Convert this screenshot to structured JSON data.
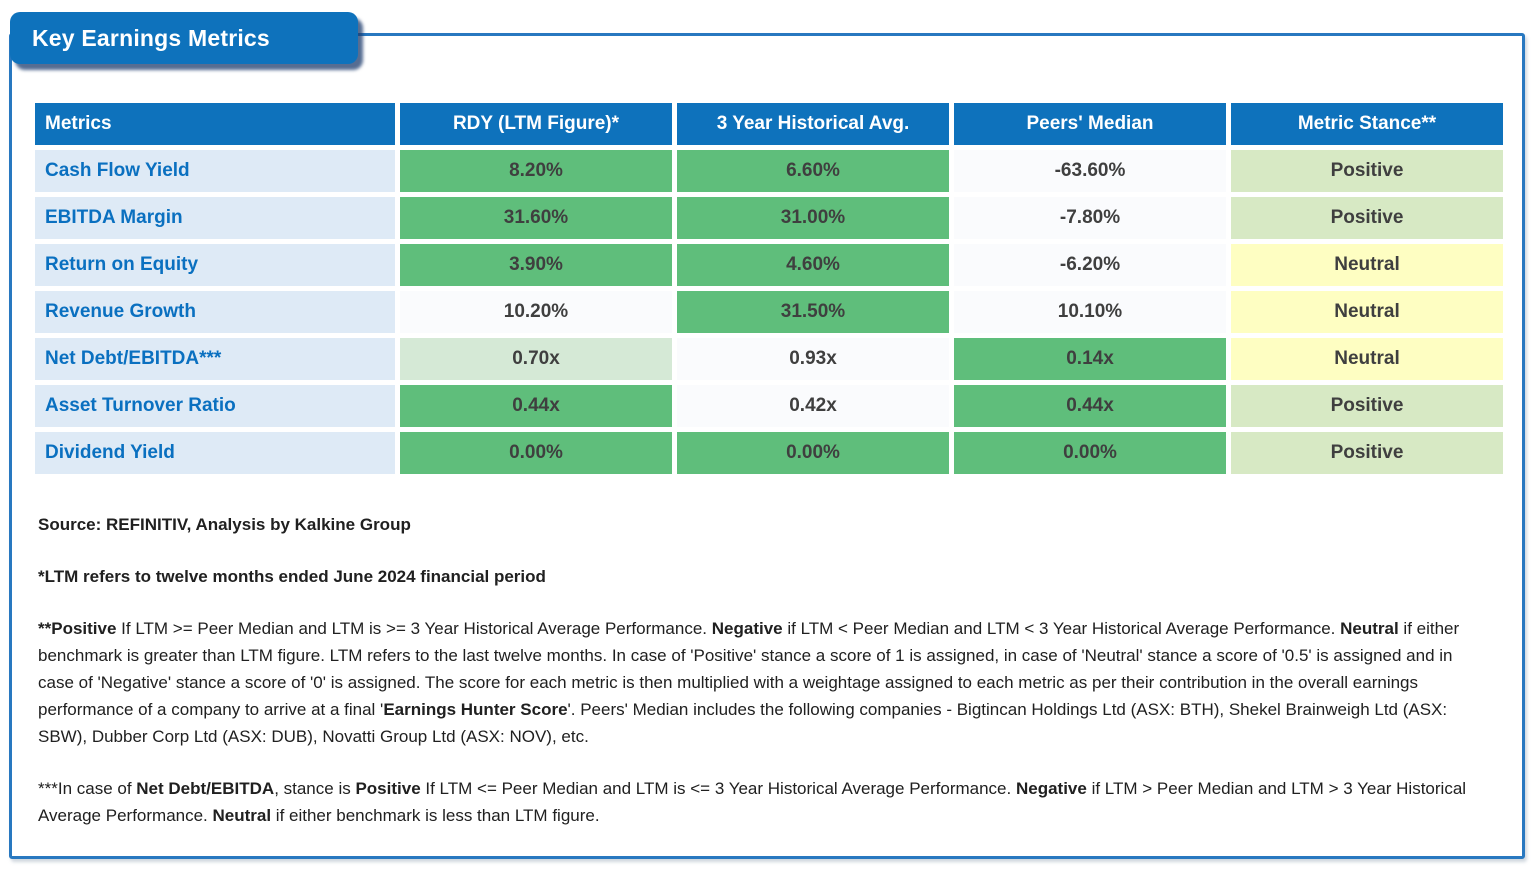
{
  "panel": {
    "title": "Key Earnings Metrics"
  },
  "colors": {
    "header_blue": "#0E72BC",
    "panel_border_blue": "#2878C0",
    "metric_col_blue": "#DEEAF6",
    "metric_text_blue": "#0A70C0",
    "green": "#5FBE7B",
    "mint": "#D5E9D6",
    "light_green": "#D7E9C4",
    "yellow": "#FEFEC2",
    "white_cell": "#FAFBFD",
    "value_text": "#3F3F3F"
  },
  "table": {
    "headers": [
      "Metrics",
      "RDY (LTM Figure)*",
      "3 Year Historical Avg.",
      "Peers' Median",
      "Metric Stance**"
    ],
    "rows": [
      {
        "metric": "Cash Flow Yield",
        "cells": [
          {
            "v": "8.20%",
            "bg": "green"
          },
          {
            "v": "6.60%",
            "bg": "green"
          },
          {
            "v": "-63.60%",
            "bg": "white_cell"
          },
          {
            "v": "Positive",
            "bg": "light_green"
          }
        ]
      },
      {
        "metric": "EBITDA Margin",
        "cells": [
          {
            "v": "31.60%",
            "bg": "green"
          },
          {
            "v": "31.00%",
            "bg": "green"
          },
          {
            "v": "-7.80%",
            "bg": "white_cell"
          },
          {
            "v": "Positive",
            "bg": "light_green"
          }
        ]
      },
      {
        "metric": "Return on Equity",
        "cells": [
          {
            "v": "3.90%",
            "bg": "green"
          },
          {
            "v": "4.60%",
            "bg": "green"
          },
          {
            "v": "-6.20%",
            "bg": "white_cell"
          },
          {
            "v": "Neutral",
            "bg": "yellow"
          }
        ]
      },
      {
        "metric": "Revenue Growth",
        "cells": [
          {
            "v": "10.20%",
            "bg": "white_cell"
          },
          {
            "v": "31.50%",
            "bg": "green"
          },
          {
            "v": "10.10%",
            "bg": "white_cell"
          },
          {
            "v": "Neutral",
            "bg": "yellow"
          }
        ]
      },
      {
        "metric": "Net Debt/EBITDA***",
        "cells": [
          {
            "v": "0.70x",
            "bg": "mint"
          },
          {
            "v": "0.93x",
            "bg": "white_cell"
          },
          {
            "v": "0.14x",
            "bg": "green"
          },
          {
            "v": "Neutral",
            "bg": "yellow"
          }
        ]
      },
      {
        "metric": "Asset Turnover Ratio",
        "cells": [
          {
            "v": "0.44x",
            "bg": "green"
          },
          {
            "v": "0.42x",
            "bg": "white_cell"
          },
          {
            "v": "0.44x",
            "bg": "green"
          },
          {
            "v": "Positive",
            "bg": "light_green"
          }
        ]
      },
      {
        "metric": "Dividend Yield",
        "cells": [
          {
            "v": "0.00%",
            "bg": "green"
          },
          {
            "v": "0.00%",
            "bg": "green"
          },
          {
            "v": "0.00%",
            "bg": "green"
          },
          {
            "v": "Positive",
            "bg": "light_green"
          }
        ]
      }
    ]
  },
  "footnotes": {
    "source": "Source: REFINITIV, Analysis by Kalkine Group",
    "ltm_note": "*LTM refers to twelve months ended June 2024 financial period",
    "stance_note": [
      {
        "t": "**Positive",
        "b": true
      },
      {
        "t": " If LTM >= Peer Median and LTM is >= 3 Year Historical Average Performance. ",
        "b": false
      },
      {
        "t": "Negative",
        "b": true
      },
      {
        "t": " if LTM < Peer Median and LTM < 3 Year Historical Average Performance. ",
        "b": false
      },
      {
        "t": "Neutral",
        "b": true
      },
      {
        "t": " if either benchmark is greater than LTM figure. LTM refers to the last twelve months. In case of 'Positive' stance a score of 1 is assigned, in case of 'Neutral' stance a score of '0.5' is assigned and in case of 'Negative' stance a score of '0' is assigned. The score for each metric is then multiplied with a weightage assigned to each metric as per their contribution in the overall earnings performance of a company to arrive at a final '",
        "b": false
      },
      {
        "t": "Earnings Hunter Score",
        "b": true
      },
      {
        "t": "'. Peers' Median includes the following companies - Bigtincan Holdings Ltd (ASX: BTH), Shekel Brainweigh Ltd (ASX: SBW), Dubber Corp Ltd (ASX: DUB), Novatti Group Ltd (ASX: NOV), etc.",
        "b": false
      }
    ],
    "netdebt_note": [
      {
        "t": "***In case of ",
        "b": false
      },
      {
        "t": "Net Debt/EBITDA",
        "b": true
      },
      {
        "t": ", stance is ",
        "b": false
      },
      {
        "t": "Positive",
        "b": true
      },
      {
        "t": " If LTM <= Peer Median and LTM is <= 3 Year Historical Average Performance. ",
        "b": false
      },
      {
        "t": "Negative",
        "b": true
      },
      {
        "t": " if LTM > Peer Median and LTM > 3 Year Historical Average Performance. ",
        "b": false
      },
      {
        "t": "Neutral",
        "b": true
      },
      {
        "t": " if either benchmark is less than LTM figure.",
        "b": false
      }
    ]
  }
}
